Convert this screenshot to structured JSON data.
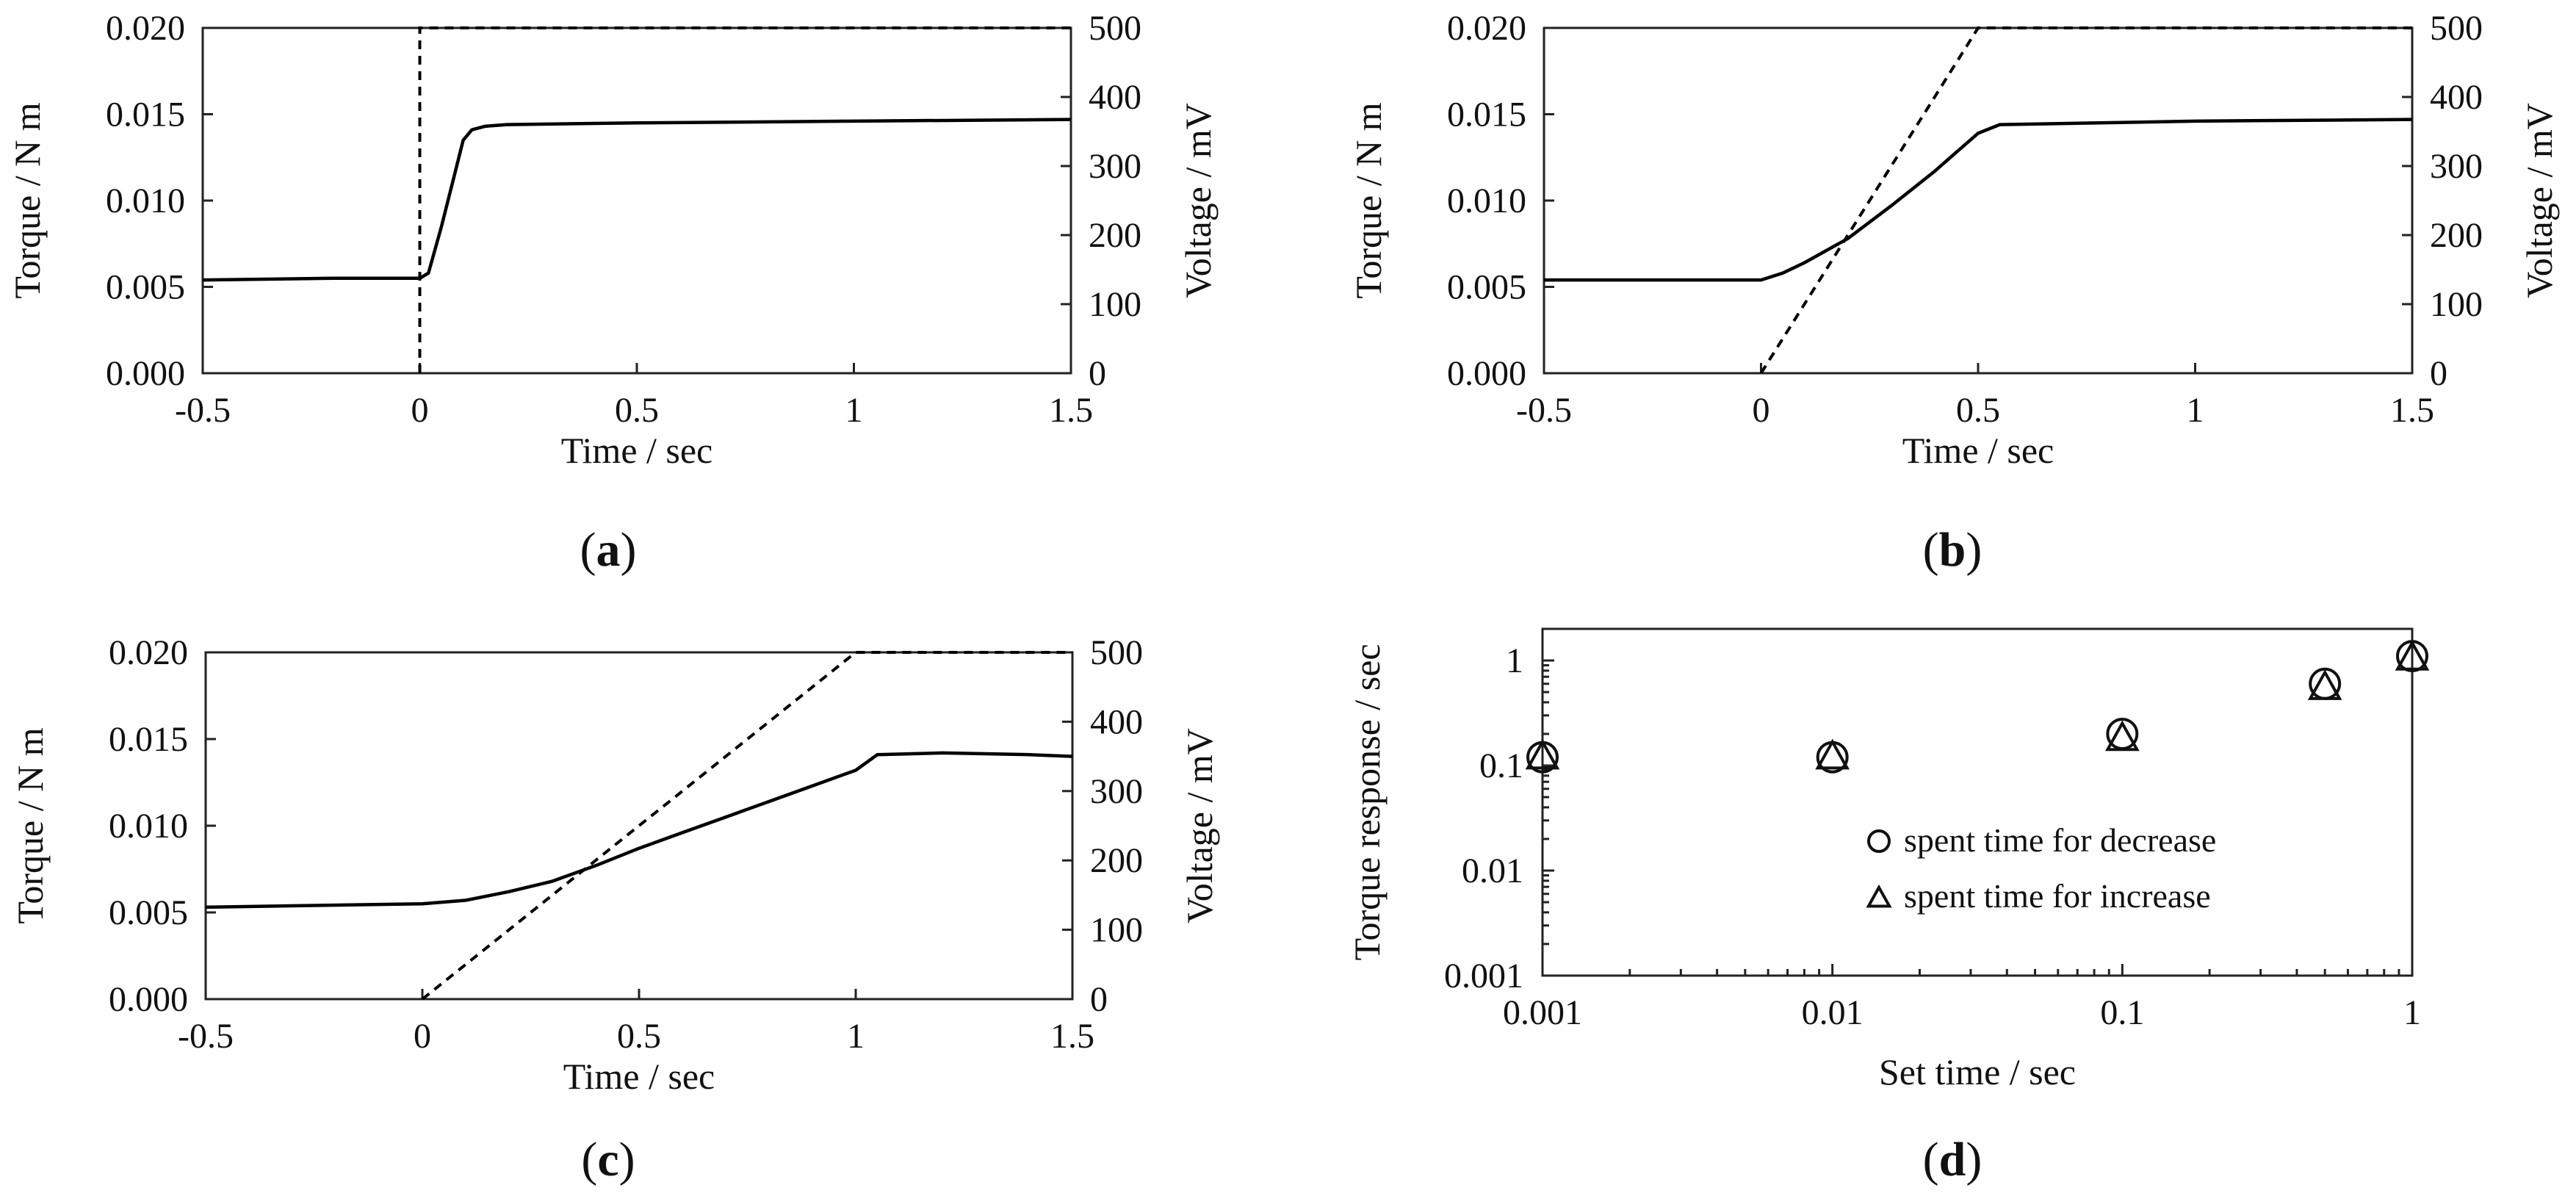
{
  "chart_data": [
    {
      "type": "line",
      "id": "a",
      "panel_label": "(a)",
      "xlabel": "Time / sec",
      "ylabel_left": "Torque / N m",
      "ylabel_right": "Voltage / mV",
      "xlim": [
        -0.5,
        1.5
      ],
      "ylim_left": [
        0,
        0.02
      ],
      "ylim_right": [
        0,
        500
      ],
      "x_ticks": [
        "-0.5",
        "0",
        "0.5",
        "1",
        "1.5"
      ],
      "y_ticks_left": [
        "0.000",
        "0.005",
        "0.010",
        "0.015",
        "0.020"
      ],
      "y_ticks_right": [
        "0",
        "100",
        "200",
        "300",
        "400",
        "500"
      ],
      "series": [
        {
          "name": "Torque",
          "axis": "left",
          "style": "solid",
          "x": [
            -0.5,
            -0.2,
            0,
            0.02,
            0.05,
            0.08,
            0.1,
            0.12,
            0.15,
            0.2,
            0.5,
            1.0,
            1.5
          ],
          "y": [
            0.0054,
            0.0055,
            0.0055,
            0.0058,
            0.0085,
            0.0115,
            0.0135,
            0.0141,
            0.0143,
            0.0144,
            0.0145,
            0.0146,
            0.0147
          ]
        },
        {
          "name": "Voltage",
          "axis": "right",
          "style": "dashed",
          "x": [
            0,
            0,
            1.5
          ],
          "y": [
            0,
            500,
            500
          ]
        }
      ]
    },
    {
      "type": "line",
      "id": "b",
      "panel_label": "(b)",
      "xlabel": "Time / sec",
      "ylabel_left": "Torque / N m",
      "ylabel_right": "Voltage / mV",
      "xlim": [
        -0.5,
        1.5
      ],
      "ylim_left": [
        0,
        0.02
      ],
      "ylim_right": [
        0,
        500
      ],
      "x_ticks": [
        "-0.5",
        "0",
        "0.5",
        "1",
        "1.5"
      ],
      "y_ticks_left": [
        "0.000",
        "0.005",
        "0.010",
        "0.015",
        "0.020"
      ],
      "y_ticks_right": [
        "0",
        "100",
        "200",
        "300",
        "400",
        "500"
      ],
      "series": [
        {
          "name": "Torque",
          "axis": "left",
          "style": "solid",
          "x": [
            -0.5,
            -0.1,
            0,
            0.05,
            0.1,
            0.2,
            0.3,
            0.4,
            0.45,
            0.5,
            0.55,
            1.0,
            1.5
          ],
          "y": [
            0.0054,
            0.0054,
            0.0054,
            0.0058,
            0.0064,
            0.0078,
            0.0097,
            0.0117,
            0.0128,
            0.0139,
            0.0144,
            0.0146,
            0.0147
          ]
        },
        {
          "name": "Voltage",
          "axis": "right",
          "style": "dashed",
          "x": [
            0,
            0.5,
            1.5
          ],
          "y": [
            0,
            500,
            500
          ]
        }
      ]
    },
    {
      "type": "line",
      "id": "c",
      "panel_label": "(c)",
      "xlabel": "Time / sec",
      "ylabel_left": "Torque / N m",
      "ylabel_right": "Voltage / mV",
      "xlim": [
        -0.5,
        1.5
      ],
      "ylim_left": [
        0,
        0.02
      ],
      "ylim_right": [
        0,
        500
      ],
      "x_ticks": [
        "-0.5",
        "0",
        "0.5",
        "1",
        "1.5"
      ],
      "y_ticks_left": [
        "0.000",
        "0.005",
        "0.010",
        "0.015",
        "0.020"
      ],
      "y_ticks_right": [
        "0",
        "100",
        "200",
        "300",
        "400",
        "500"
      ],
      "series": [
        {
          "name": "Torque",
          "axis": "left",
          "style": "solid",
          "x": [
            -0.5,
            0,
            0.1,
            0.2,
            0.3,
            0.4,
            0.5,
            0.6,
            0.7,
            0.8,
            0.9,
            1.0,
            1.05,
            1.2,
            1.4,
            1.5
          ],
          "y": [
            0.0053,
            0.0055,
            0.0057,
            0.0062,
            0.0068,
            0.0077,
            0.0087,
            0.0096,
            0.0105,
            0.0114,
            0.0123,
            0.0132,
            0.0141,
            0.0142,
            0.0141,
            0.014
          ]
        },
        {
          "name": "Voltage",
          "axis": "right",
          "style": "dashed",
          "x": [
            0,
            1.0,
            1.5
          ],
          "y": [
            0,
            500,
            500
          ]
        }
      ]
    },
    {
      "type": "scatter",
      "id": "d",
      "panel_label": "(d)",
      "xlabel": "Set time / sec",
      "ylabel": "Torque response / sec",
      "xscale": "log",
      "yscale": "log",
      "xlim": [
        0.001,
        1
      ],
      "ylim": [
        0.001,
        2
      ],
      "x_ticks": [
        "0.001",
        "0.01",
        "0.1",
        "1"
      ],
      "y_ticks": [
        "0.001",
        "0.01",
        "0.1",
        "1"
      ],
      "legend_position": "center-right",
      "series": [
        {
          "name": "spent time for decrease",
          "marker": "circle",
          "x": [
            0.001,
            0.01,
            0.1,
            0.5,
            1.0
          ],
          "y": [
            0.12,
            0.12,
            0.2,
            0.6,
            1.1
          ]
        },
        {
          "name": "spent time for increase",
          "marker": "triangle",
          "x": [
            0.001,
            0.01,
            0.1,
            0.5,
            1.0
          ],
          "y": [
            0.12,
            0.12,
            0.18,
            0.55,
            1.05
          ]
        }
      ]
    }
  ]
}
